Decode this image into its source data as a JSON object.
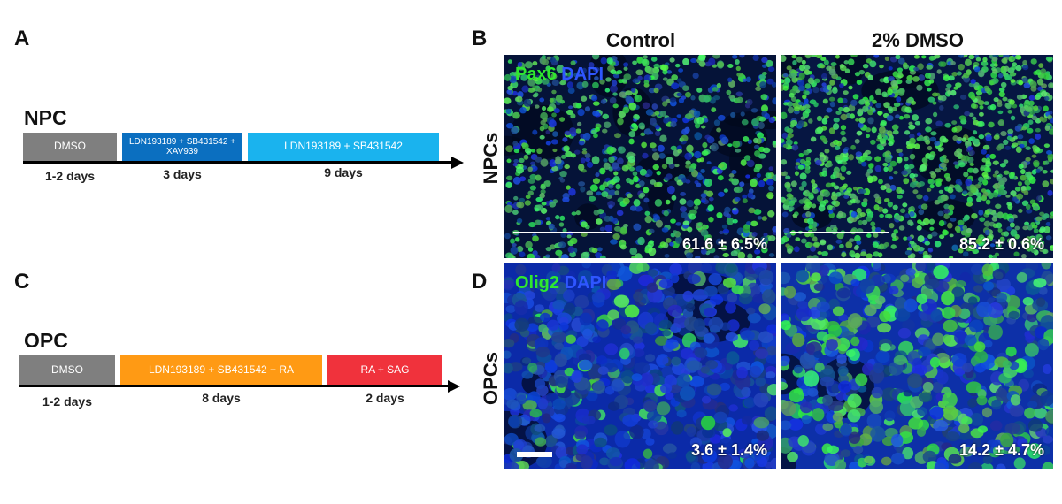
{
  "panels": {
    "A": "A",
    "B": "B",
    "C": "C",
    "D": "D"
  },
  "npc": {
    "title": "NPC",
    "stages": [
      {
        "label": "DMSO",
        "color": "#7f7f7f"
      },
      {
        "label": "LDN193189 + SB431542 + XAV939",
        "color": "#0b6fc0"
      },
      {
        "label": "LDN193189 + SB431542",
        "color": "#1ab3ee"
      }
    ],
    "durations": [
      "1-2 days",
      "3 days",
      "9 days"
    ]
  },
  "opc": {
    "title": "OPC",
    "stages": [
      {
        "label": "DMSO",
        "color": "#7f7f7f"
      },
      {
        "label": "LDN193189 + SB431542 + RA",
        "color": "#ff9a14"
      },
      {
        "label": "RA + SAG",
        "color": "#f0323c"
      }
    ],
    "durations": [
      "1-2 days",
      "8 days",
      "2 days"
    ]
  },
  "images": {
    "columns": [
      "Control",
      "2% DMSO"
    ],
    "rows": [
      "NPCs",
      "OPCs"
    ],
    "npc_marker": {
      "green": "Pax6",
      "blue": "DAPI"
    },
    "opc_marker": {
      "green": "Olig2",
      "blue": "DAPI"
    },
    "npc_values": [
      "61.6 ± 6.5%",
      "85.2 ± 0.6%"
    ],
    "opc_values": [
      "3.6 ± 1.4%",
      "14.2 ± 4.7%"
    ],
    "npc_green_fraction": [
      0.616,
      0.852
    ],
    "opc_green_fraction": [
      0.036,
      0.142
    ]
  }
}
